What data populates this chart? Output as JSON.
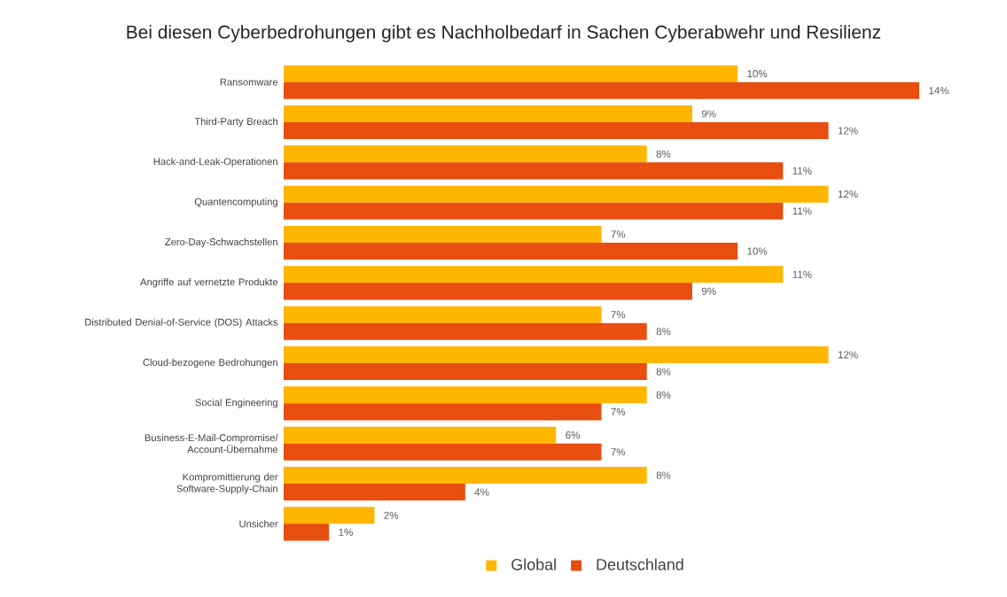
{
  "chart_data": {
    "type": "bar",
    "orientation": "horizontal",
    "title": "Bei diesen Cyberbedrohungen gibt es Nachholbedarf in Sachen Cyberabwehr und Resilienz",
    "categories": [
      "Ransomware",
      "Third-Party Breach",
      "Hack-and-Leak-Operationen",
      "Quantencomputing",
      "Zero-Day-Schwachstellen",
      "Angriffe auf vernetzte Produkte",
      "Distributed Denial-of-Service (DOS) Attacks",
      "Cloud-bezogene Bedrohungen",
      "Social Engineering",
      "Business-E-Mail-Compromise/ Account-Übernahme",
      "Kompromittierung der Software-Supply-Chain",
      "Unsicher"
    ],
    "series": [
      {
        "name": "Global",
        "color": "#ffb600",
        "values": [
          10,
          9,
          8,
          12,
          7,
          11,
          7,
          12,
          8,
          6,
          8,
          2
        ],
        "value_labels": [
          "10%",
          "9%",
          "8%",
          "12%",
          "7%",
          "11%",
          "7%",
          "12%",
          "8%",
          "6%",
          "8%",
          "2%"
        ]
      },
      {
        "name": "Deutschland",
        "color": "#e84e0f",
        "values": [
          14,
          12,
          11,
          11,
          10,
          9,
          8,
          8,
          7,
          7,
          4,
          1
        ],
        "value_labels": [
          "14%",
          "12%",
          "11%",
          "11%",
          "10%",
          "9%",
          "8%",
          "8%",
          "7%",
          "7%",
          "4%",
          "1%"
        ]
      }
    ],
    "legend": "bottom"
  }
}
